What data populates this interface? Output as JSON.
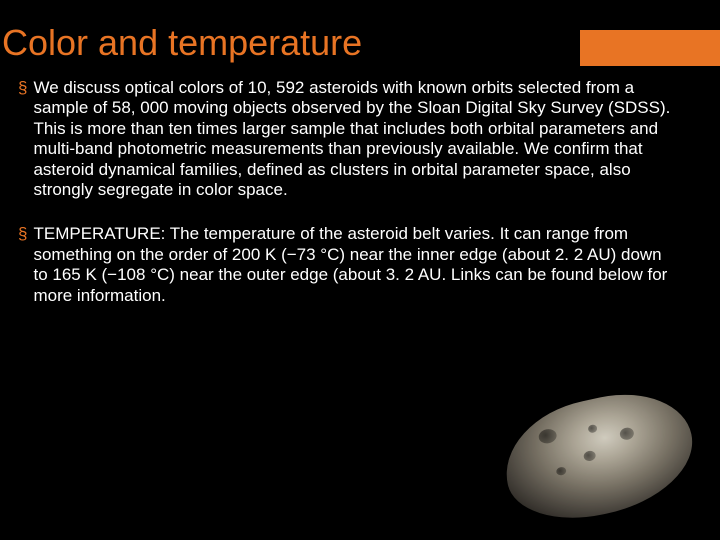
{
  "title": "Color and temperature",
  "bullets": [
    {
      "text": "We discuss optical colors of 10, 592 asteroids with known orbits selected from a sample of 58, 000 moving objects observed by the Sloan Digital Sky Survey (SDSS). This is more than ten times larger sample that includes both orbital parameters and multi-band photometric measurements than previously available. We confirm that asteroid dynamical families, defined as clusters in orbital parameter space, also strongly segregate in color space."
    },
    {
      "text": "TEMPERATURE: The temperature of the asteroid belt varies. It can range from something on the order of 200 K (−73 °C) near the inner edge (about 2. 2 AU) down to 165 K (−108 °C) near the outer edge (about 3. 2 AU. Links can be found below for more information."
    }
  ],
  "colors": {
    "accent": "#e87424",
    "background": "#000000",
    "text": "#ffffff"
  }
}
